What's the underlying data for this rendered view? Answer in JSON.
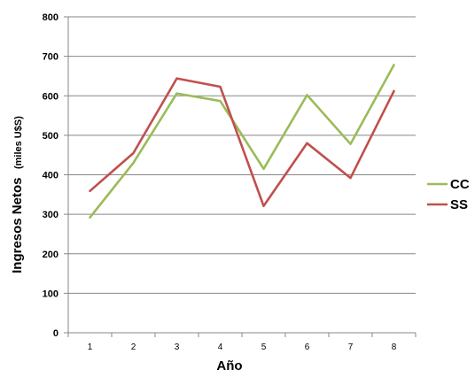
{
  "chart_data": {
    "type": "line",
    "title": "",
    "xlabel": "Año",
    "ylabel_main": "Ingresos Netos",
    "ylabel_sub": "(miles U$S)",
    "x": [
      "1",
      "2",
      "3",
      "4",
      "5",
      "6",
      "7",
      "8"
    ],
    "ylim": [
      0,
      800
    ],
    "yticks": [
      "0",
      "100",
      "200",
      "300",
      "400",
      "500",
      "600",
      "700",
      "800"
    ],
    "grid": "horizontal major gridlines",
    "legend_position": "right",
    "series": [
      {
        "name": "CC",
        "color": "#9BBB59",
        "values": [
          292,
          430,
          606,
          587,
          415,
          602,
          478,
          678
        ]
      },
      {
        "name": "SS",
        "color": "#C0504D",
        "values": [
          359,
          455,
          644,
          623,
          321,
          480,
          392,
          612
        ]
      }
    ]
  }
}
